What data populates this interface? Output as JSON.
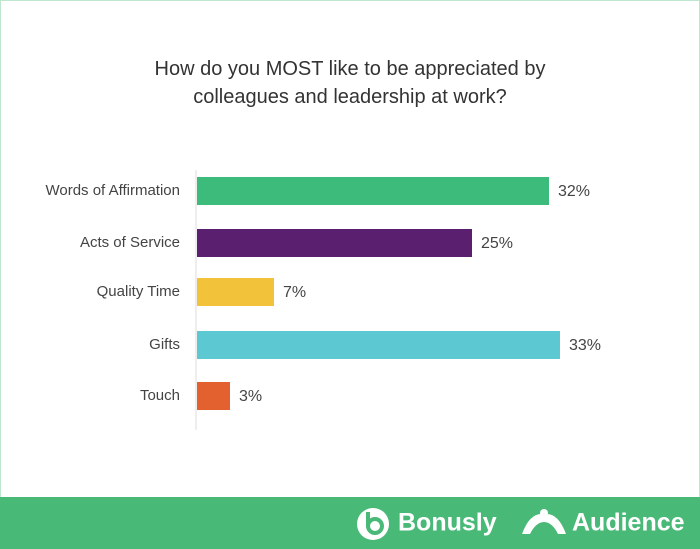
{
  "chart_data": {
    "type": "bar",
    "orientation": "horizontal",
    "title": "How do you MOST like to be appreciated by colleagues and leadership at work?",
    "categories": [
      "Words of Affirmation",
      "Acts of Service",
      "Quality Time",
      "Gifts",
      "Touch"
    ],
    "values": [
      32,
      25,
      7,
      33,
      3
    ],
    "value_labels": [
      "32%",
      "25%",
      "7%",
      "33%",
      "3%"
    ],
    "colors": [
      "#3dbb7b",
      "#5a1f6e",
      "#f2c23a",
      "#5bc8d2",
      "#e2612e"
    ]
  },
  "footer": {
    "brands": [
      "Bonusly",
      "Audience"
    ]
  }
}
